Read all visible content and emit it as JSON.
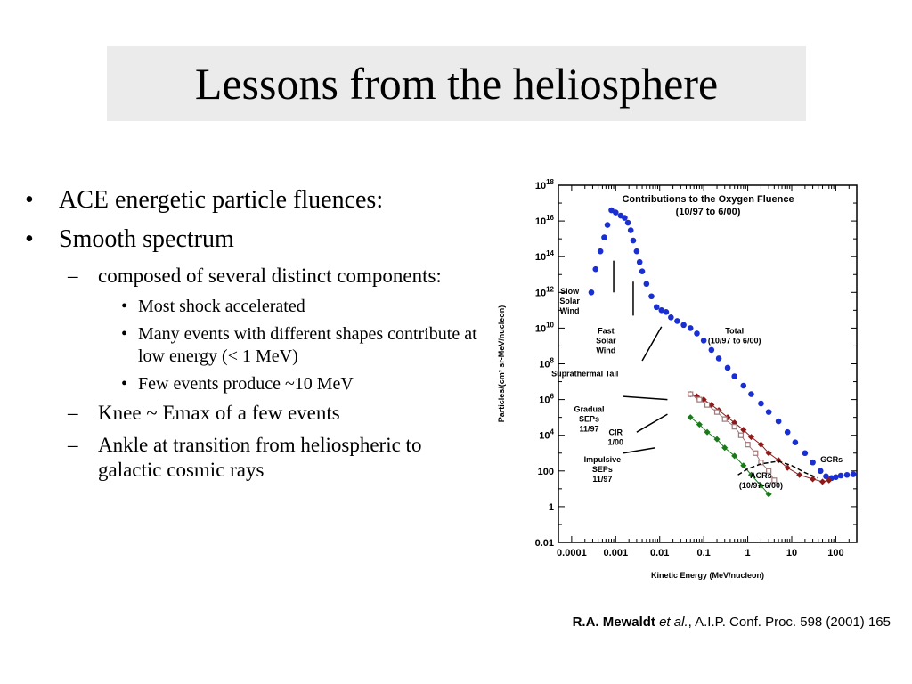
{
  "slide": {
    "title": "Lessons from the heliosphere",
    "bullets": [
      {
        "level": 1,
        "marker": "•",
        "text": "ACE energetic particle fluences:"
      },
      {
        "level": 1,
        "marker": "•",
        "text": "Smooth spectrum"
      },
      {
        "level": 2,
        "marker": "–",
        "text": "composed of several distinct components:"
      },
      {
        "level": 3,
        "marker": "•",
        "text": "Most shock accelerated"
      },
      {
        "level": 3,
        "marker": "•",
        "text": "Many events with different shapes contribute at low energy (< 1 MeV)"
      },
      {
        "level": 3,
        "marker": "•",
        "text": "Few events produce ~10 MeV"
      },
      {
        "level": 2,
        "marker": "–",
        "text": "Knee ~ Emax of a few events"
      },
      {
        "level": 2,
        "marker": "–",
        "text": "Ankle at transition from heliospheric to galactic cosmic rays"
      }
    ],
    "citation": {
      "author": "R.A. Mewaldt",
      "etal": "et al.",
      "rest": ", A.I.P. Conf. Proc. 598 (2001) 165"
    }
  },
  "chart_data": {
    "type": "scatter",
    "title": "Contributions to the Oxygen Fluence",
    "subtitle": "(10/97 to 6/00)",
    "xlabel": "Kinetic Energy (MeV/nucleon)",
    "ylabel": "Particles/(cm² sr-MeV/nucleon)",
    "xscale": "log",
    "yscale": "log",
    "xlim": [
      5e-05,
      300
    ],
    "ylim": [
      0.01,
      1e+18
    ],
    "x_ticks": [
      {
        "v": 0.0001,
        "label": "0.0001"
      },
      {
        "v": 0.001,
        "label": "0.001"
      },
      {
        "v": 0.01,
        "label": "0.01"
      },
      {
        "v": 0.1,
        "label": "0.1"
      },
      {
        "v": 1,
        "label": "1"
      },
      {
        "v": 10,
        "label": "10"
      },
      {
        "v": 100,
        "label": "100"
      }
    ],
    "y_ticks": [
      {
        "v": 1e+18,
        "base": "10",
        "exp": "18"
      },
      {
        "v": 1e+16,
        "base": "10",
        "exp": "16"
      },
      {
        "v": 100000000000000.0,
        "base": "10",
        "exp": "14"
      },
      {
        "v": 1000000000000.0,
        "base": "10",
        "exp": "12"
      },
      {
        "v": 10000000000.0,
        "base": "10",
        "exp": "10"
      },
      {
        "v": 100000000.0,
        "base": "10",
        "exp": "8"
      },
      {
        "v": 1000000.0,
        "base": "10",
        "exp": "6"
      },
      {
        "v": 10000.0,
        "base": "10",
        "exp": "4"
      },
      {
        "v": 100,
        "base": "100",
        "exp": ""
      },
      {
        "v": 1,
        "base": "1",
        "exp": ""
      },
      {
        "v": 0.01,
        "base": "0.01",
        "exp": ""
      }
    ],
    "series": [
      {
        "name": "Total",
        "color": "#1a2fd0",
        "marker": "circle",
        "line": false,
        "points": [
          [
            0.00028,
            1000000000000.0
          ],
          [
            0.00035,
            20000000000000.0
          ],
          [
            0.00045,
            200000000000000.0
          ],
          [
            0.00055,
            1200000000000000.0
          ],
          [
            0.00065,
            6000000000000000.0
          ],
          [
            0.0008,
            4e+16
          ],
          [
            0.001,
            3e+16
          ],
          [
            0.0013,
            2e+16
          ],
          [
            0.0016,
            1.5e+16
          ],
          [
            0.0019,
            8000000000000000.0
          ],
          [
            0.0022,
            3000000000000000.0
          ],
          [
            0.0025,
            800000000000000.0
          ],
          [
            0.003,
            200000000000000.0
          ],
          [
            0.0035,
            50000000000000.0
          ],
          [
            0.004,
            15000000000000.0
          ],
          [
            0.005,
            3000000000000.0
          ],
          [
            0.0065,
            600000000000.0
          ],
          [
            0.0085,
            150000000000.0
          ],
          [
            0.011,
            100000000000.0
          ],
          [
            0.014,
            80000000000.0
          ],
          [
            0.018,
            40000000000.0
          ],
          [
            0.025,
            25000000000.0
          ],
          [
            0.035,
            15000000000.0
          ],
          [
            0.05,
            10000000000.0
          ],
          [
            0.07,
            5000000000.0
          ],
          [
            0.1,
            2000000000.0
          ],
          [
            0.15,
            600000000.0
          ],
          [
            0.22,
            200000000.0
          ],
          [
            0.35,
            60000000.0
          ],
          [
            0.5,
            20000000.0
          ],
          [
            0.8,
            6000000.0
          ],
          [
            1.2,
            2000000.0
          ],
          [
            2,
            600000.0
          ],
          [
            3,
            200000.0
          ],
          [
            5,
            60000.0
          ],
          [
            8,
            15000.0
          ],
          [
            12,
            4000.0
          ],
          [
            20,
            1000.0
          ],
          [
            30,
            300
          ],
          [
            45,
            100
          ],
          [
            60,
            50
          ],
          [
            80,
            40
          ],
          [
            100,
            45
          ],
          [
            130,
            55
          ],
          [
            180,
            60
          ],
          [
            250,
            65
          ]
        ]
      },
      {
        "name": "Gradual SEPs 11/97",
        "color": "#8b1a1a",
        "marker": "diamond",
        "line": true,
        "points": [
          [
            0.05,
            2000000.0
          ],
          [
            0.07,
            1500000.0
          ],
          [
            0.1,
            1000000.0
          ],
          [
            0.15,
            500000.0
          ],
          [
            0.22,
            250000.0
          ],
          [
            0.35,
            100000.0
          ],
          [
            0.5,
            50000.0
          ],
          [
            0.8,
            20000.0
          ],
          [
            1.2,
            8000.0
          ],
          [
            2,
            3000.0
          ],
          [
            3,
            1000.0
          ],
          [
            5,
            400
          ],
          [
            8,
            150
          ],
          [
            15,
            60
          ],
          [
            30,
            35
          ],
          [
            50,
            25
          ],
          [
            70,
            30
          ]
        ]
      },
      {
        "name": "CIR 1/00",
        "color": "#a0787a",
        "marker": "square",
        "line": true,
        "points": [
          [
            0.05,
            2000000.0
          ],
          [
            0.08,
            1000000.0
          ],
          [
            0.12,
            500000.0
          ],
          [
            0.2,
            200000.0
          ],
          [
            0.3,
            80000.0
          ],
          [
            0.5,
            30000.0
          ],
          [
            0.7,
            10000.0
          ],
          [
            1,
            3000.0
          ],
          [
            1.5,
            1000.0
          ],
          [
            2,
            300
          ],
          [
            3,
            100
          ],
          [
            4,
            30
          ]
        ]
      },
      {
        "name": "Impulsive SEPs 11/97",
        "color": "#1a7a1a",
        "marker": "diamond",
        "line": true,
        "points": [
          [
            0.05,
            100000.0
          ],
          [
            0.08,
            40000.0
          ],
          [
            0.12,
            15000.0
          ],
          [
            0.2,
            6000.0
          ],
          [
            0.3,
            2000.0
          ],
          [
            0.5,
            700
          ],
          [
            0.8,
            200
          ],
          [
            1.2,
            60
          ],
          [
            2,
            15
          ],
          [
            3,
            5
          ]
        ]
      },
      {
        "name": "ACRs (10/97-6/00)",
        "color": "#000000",
        "marker": "none",
        "line": true,
        "dashed": true,
        "points": [
          [
            0.6,
            60
          ],
          [
            1,
            130
          ],
          [
            2,
            250
          ],
          [
            5,
            350
          ],
          [
            10,
            200
          ],
          [
            20,
            80
          ],
          [
            40,
            40
          ]
        ]
      }
    ],
    "annotations": [
      {
        "text": [
          "Slow",
          "Solar",
          "Wind"
        ],
        "pos": [
          9e-05,
          800000000000.0
        ],
        "pointer": [
          [
            0.0009,
            1000000000000.0
          ],
          [
            0.0009,
            60000000000000.0
          ]
        ]
      },
      {
        "text": [
          "Fast",
          "Solar",
          "Wind"
        ],
        "pos": [
          0.0006,
          5000000000.0
        ],
        "pointer": [
          [
            0.0025,
            50000000000.0
          ],
          [
            0.0025,
            4000000000000.0
          ]
        ]
      },
      {
        "text": [
          "Suprathermal Tail"
        ],
        "pos": [
          0.0002,
          20000000.0
        ],
        "pointer": [
          [
            0.004,
            150000000.0
          ],
          [
            0.011,
            12000000000.0
          ]
        ]
      },
      {
        "text": [
          "Gradual",
          "SEPs",
          "11/97"
        ],
        "pos": [
          0.00025,
          200000.0
        ],
        "pointer": [
          [
            0.0015,
            1500000.0
          ],
          [
            0.015,
            1000000.0
          ]
        ]
      },
      {
        "text": [
          "CIR",
          "1/00"
        ],
        "pos": [
          0.001,
          10000.0
        ],
        "pointer": [
          [
            0.003,
            15000.0
          ],
          [
            0.015,
            150000.0
          ]
        ]
      },
      {
        "text": [
          "Impulsive",
          "SEPs",
          "11/97"
        ],
        "pos": [
          0.0005,
          300
        ],
        "pointer": [
          [
            0.0015,
            1000.0
          ],
          [
            0.008,
            2000.0
          ]
        ]
      },
      {
        "text": [
          "Total",
          "(10/97 to 6/00)"
        ],
        "pos": [
          0.5,
          5000000000.0
        ],
        "pointer": null
      },
      {
        "text": [
          "ACRs",
          "(10/97-6/00)"
        ],
        "pos": [
          2,
          40
        ],
        "pointer": null
      },
      {
        "text": [
          "GCRs"
        ],
        "pos": [
          80,
          300
        ],
        "pointer": null
      }
    ]
  }
}
